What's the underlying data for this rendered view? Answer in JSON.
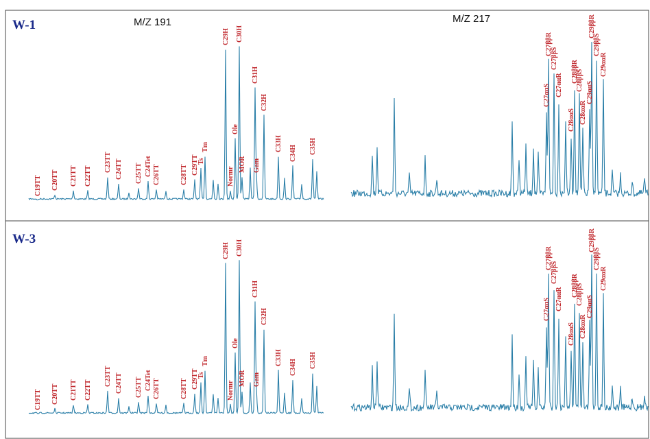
{
  "panels": [
    {
      "label": "W-1",
      "headers": [
        "M/Z 191",
        "M/Z 217"
      ],
      "peaks_191": [
        "C19TT",
        "C20TT",
        "C21TT",
        "C22TT",
        "C23TT",
        "C24TT",
        "C25TT",
        "C24Tet",
        "C26TT",
        "C28TT",
        "C29TT",
        "Ts",
        "Tm",
        "Normr",
        "C29H",
        "Ole",
        "C30H",
        "MOR",
        "Gam",
        "C31H",
        "C32H",
        "C33H",
        "C34H",
        "C35H"
      ],
      "peaks_217": [
        "C27ααS",
        "C27ββR",
        "C27ββS",
        "C27ααR",
        "C28ααS",
        "C28ββR",
        "C28ββS",
        "C28ααR",
        "C29ααS",
        "C29ββR",
        "C29ββS",
        "C29ααR"
      ]
    },
    {
      "label": "W-3",
      "peaks_191": [
        "C19TT",
        "C20TT",
        "C21TT",
        "C22TT",
        "C23TT",
        "C24TT",
        "C25TT",
        "C24Tet",
        "C26TT",
        "C28TT",
        "C29TT",
        "Ts",
        "Tm",
        "Normr",
        "C29H",
        "Ole",
        "C30H",
        "MOR",
        "Gam",
        "C31H",
        "C32H",
        "C33H",
        "C34H",
        "C35H"
      ],
      "peaks_217": [
        "C27ααS",
        "C27ββR",
        "C27ββS",
        "C27ααR",
        "C28ααS",
        "C28ββR",
        "C28ββS",
        "C28ααR",
        "C29ααS",
        "C29ββR",
        "C29ββS",
        "C29ααR"
      ]
    }
  ]
}
